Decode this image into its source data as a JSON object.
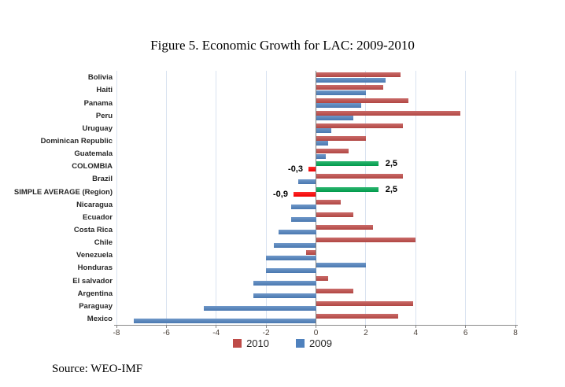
{
  "page": {
    "source": "Source: WEO-IMF"
  },
  "chart_data": {
    "type": "bar",
    "orientation": "horizontal",
    "title": "Figure 5. Economic Growth for LAC: 2009-2010",
    "xlim": [
      -8,
      8
    ],
    "xticks": [
      -8,
      -6,
      -4,
      -2,
      0,
      2,
      4,
      6,
      8
    ],
    "grid": true,
    "legend_position": "bottom",
    "series_names": [
      "2010",
      "2009"
    ],
    "colors": {
      "series_2010": "#be4b48",
      "series_2009": "#4f81bd",
      "highlight_green": "#00a651",
      "highlight_red": "#ff0000",
      "gridline": "#d9e2f0",
      "axis": "#7f7f7f"
    },
    "rows": [
      {
        "label": "Bolivia",
        "v2010": 3.4,
        "v2009": 2.8
      },
      {
        "label": "Haiti",
        "v2010": 2.7,
        "v2009": 2.0
      },
      {
        "label": "Panama",
        "v2010": 3.7,
        "v2009": 1.8
      },
      {
        "label": "Peru",
        "v2010": 5.8,
        "v2009": 1.5
      },
      {
        "label": "Uruguay",
        "v2010": 3.5,
        "v2009": 0.6
      },
      {
        "label": "Dominican Republic",
        "v2010": 2.0,
        "v2009": 0.5
      },
      {
        "label": "Guatemala",
        "v2010": 1.3,
        "v2009": 0.4
      },
      {
        "label": "COLOMBIA",
        "v2010": 2.5,
        "v2009": -0.3,
        "color2010": "highlight_green",
        "color2009": "highlight_red",
        "annot2010": "2,5",
        "annot2009": "-0,3"
      },
      {
        "label": "Brazil",
        "v2010": 3.5,
        "v2009": -0.7
      },
      {
        "label": "SIMPLE AVERAGE (Region)",
        "v2010": 2.5,
        "v2009": -0.9,
        "color2010": "highlight_green",
        "color2009": "highlight_red",
        "annot2010": "2,5",
        "annot2009": "-0,9"
      },
      {
        "label": "Nicaragua",
        "v2010": 1.0,
        "v2009": -1.0
      },
      {
        "label": "Ecuador",
        "v2010": 1.5,
        "v2009": -1.0
      },
      {
        "label": "Costa Rica",
        "v2010": 2.3,
        "v2009": -1.5
      },
      {
        "label": "Chile",
        "v2010": 4.0,
        "v2009": -1.7
      },
      {
        "label": "Venezuela",
        "v2010": -0.4,
        "v2009": -2.0
      },
      {
        "label": "Honduras",
        "v2010": 2.0,
        "v2009": -2.0,
        "color2010": "series_2009"
      },
      {
        "label": "El salvador",
        "v2010": 0.5,
        "v2009": -2.5
      },
      {
        "label": "Argentina",
        "v2010": 1.5,
        "v2009": -2.5
      },
      {
        "label": "Paraguay",
        "v2010": 3.9,
        "v2009": -4.5
      },
      {
        "label": "Mexico",
        "v2010": 3.3,
        "v2009": -7.3
      }
    ]
  }
}
